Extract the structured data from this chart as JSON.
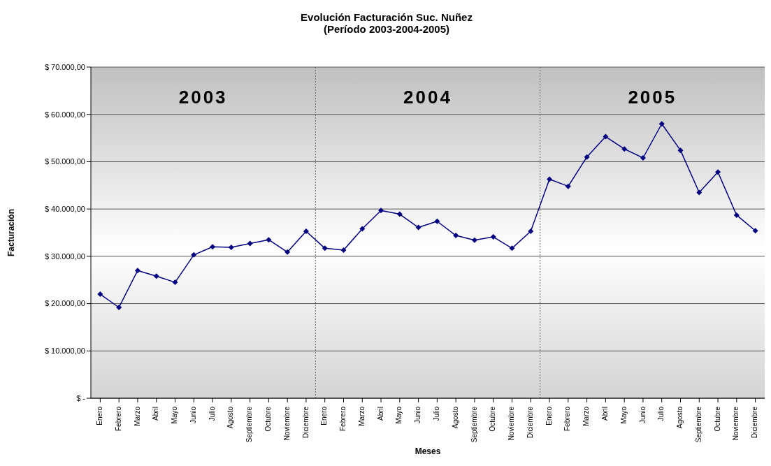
{
  "chart_data": {
    "type": "line",
    "title": "Evolución Facturación Suc. Nuñez",
    "subtitle": "(Período 2003-2004-2005)",
    "xlabel": "Meses",
    "ylabel": "Facturación",
    "categories": [
      "Enero",
      "Febrero",
      "Marzo",
      "Abril",
      "Mayo",
      "Junio",
      "Julio",
      "Agosto",
      "Septiembre",
      "Octubre",
      "Noviembre",
      "Diciembre",
      "Enero",
      "Febrero",
      "Marzo",
      "Abril",
      "Mayo",
      "Junio",
      "Julio",
      "Agosto",
      "Septiembre",
      "Octubre",
      "Noviembre",
      "Diciembre",
      "Enero",
      "Febrero",
      "Marzo",
      "Abril",
      "Mayo",
      "Junio",
      "Julio",
      "Agosto",
      "Septiembre",
      "Octubre",
      "Noviembre",
      "Diciembre"
    ],
    "series": [
      {
        "color": "#000080",
        "values": [
          22000,
          19200,
          27000,
          25800,
          24500,
          30300,
          32000,
          31900,
          32700,
          33500,
          30900,
          35300,
          31700,
          31300,
          35800,
          39700,
          38900,
          36100,
          37400,
          34400,
          33400,
          34100,
          31700,
          35300,
          46300,
          44800,
          51000,
          55300,
          52700,
          50800,
          58000,
          52400,
          43500,
          47800,
          38700,
          35400
        ]
      }
    ],
    "ylim": [
      0,
      70000
    ],
    "yticks": [
      {
        "value": 0,
        "label": "$ -"
      },
      {
        "value": 10000,
        "label": "$ 10.000,00"
      },
      {
        "value": 20000,
        "label": "$ 20.000,00"
      },
      {
        "value": 30000,
        "label": "$ 30.000,00"
      },
      {
        "value": 40000,
        "label": "$ 40.000,00"
      },
      {
        "value": 50000,
        "label": "$ 50.000,00"
      },
      {
        "value": 60000,
        "label": "$ 60.000,00"
      },
      {
        "value": 70000,
        "label": "$ 70.000,00"
      }
    ],
    "grid": "y",
    "marker": "diamond",
    "line_style": "solid",
    "legend": false,
    "annotations": [
      "2003",
      "2004",
      "2005"
    ]
  }
}
